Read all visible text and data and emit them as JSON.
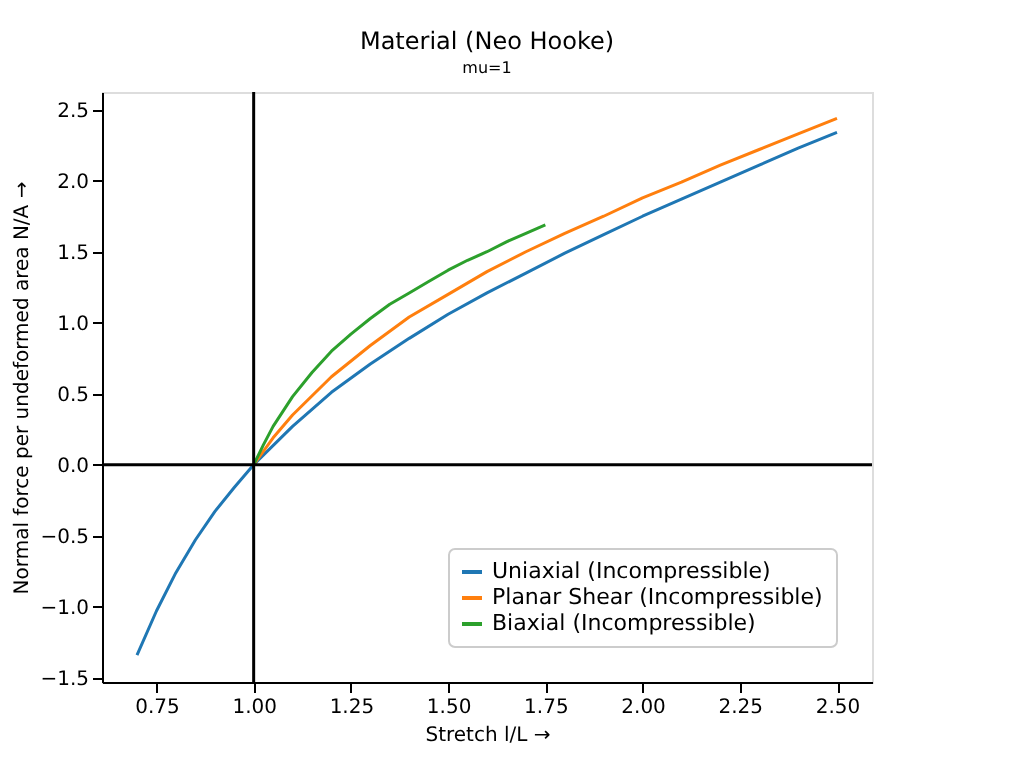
{
  "chart_data": {
    "type": "line",
    "title": "Material (Neo Hooke)",
    "subtitle": "mu=1",
    "xlabel": "Stretch l/L  →",
    "ylabel": "Normal force per undeformed area N/A  →",
    "xlim": [
      0.61,
      2.59
    ],
    "ylim": [
      -1.53,
      2.625
    ],
    "xticks": [
      {
        "value": 0.75,
        "label": "0.75"
      },
      {
        "value": 1,
        "label": "1.00"
      },
      {
        "value": 1.25,
        "label": "1.25"
      },
      {
        "value": 1.5,
        "label": "1.50"
      },
      {
        "value": 1.75,
        "label": "1.75"
      },
      {
        "value": 2,
        "label": "2.00"
      },
      {
        "value": 2.25,
        "label": "2.25"
      },
      {
        "value": 2.5,
        "label": "2.50"
      }
    ],
    "yticks": [
      {
        "value": -1.5,
        "label": "−1.5"
      },
      {
        "value": -1,
        "label": "−1.0"
      },
      {
        "value": -0.5,
        "label": "−0.5"
      },
      {
        "value": 0,
        "label": "0.0"
      },
      {
        "value": 0.5,
        "label": "0.5"
      },
      {
        "value": 1,
        "label": "1.0"
      },
      {
        "value": 1.5,
        "label": "1.5"
      },
      {
        "value": 2,
        "label": "2.0"
      },
      {
        "value": 2.5,
        "label": "2.5"
      }
    ],
    "grid": false,
    "legend": "bottom right",
    "line_style": "solid",
    "marker": "none",
    "ref_lines": [
      {
        "axis": "x",
        "value": 1,
        "color": "#000000"
      },
      {
        "axis": "y",
        "value": 0,
        "color": "#000000"
      }
    ],
    "series": [
      {
        "name": "Uniaxial (Incompressible)",
        "color": "#1f77b4",
        "x": [
          0.7,
          0.75,
          0.8,
          0.85,
          0.9,
          0.95,
          1.0,
          1.1,
          1.2,
          1.3,
          1.4,
          1.5,
          1.6,
          1.7,
          1.8,
          1.9,
          2.0,
          2.1,
          2.2,
          2.3,
          2.4,
          2.5
        ],
        "values": [
          -1.34,
          -1.03,
          -0.76,
          -0.53,
          -0.33,
          -0.16,
          0,
          0.27,
          0.51,
          0.71,
          0.89,
          1.06,
          1.21,
          1.35,
          1.49,
          1.62,
          1.75,
          1.87,
          1.99,
          2.11,
          2.23,
          2.34
        ]
      },
      {
        "name": "Planar Shear (Incompressible)",
        "color": "#ff7f0e",
        "x": [
          1.0,
          1.05,
          1.1,
          1.2,
          1.3,
          1.4,
          1.5,
          1.6,
          1.7,
          1.8,
          1.9,
          2.0,
          2.1,
          2.2,
          2.3,
          2.4,
          2.5
        ],
        "values": [
          0,
          0.19,
          0.35,
          0.62,
          0.84,
          1.04,
          1.2,
          1.36,
          1.5,
          1.63,
          1.75,
          1.88,
          1.99,
          2.11,
          2.22,
          2.33,
          2.44
        ]
      },
      {
        "name": "Biaxial (Incompressible)",
        "color": "#2ca02c",
        "x": [
          1.0,
          1.025,
          1.05,
          1.1,
          1.15,
          1.2,
          1.25,
          1.3,
          1.35,
          1.4,
          1.45,
          1.5,
          1.55,
          1.6,
          1.65,
          1.7,
          1.75
        ],
        "values": [
          0,
          0.14,
          0.27,
          0.48,
          0.65,
          0.8,
          0.92,
          1.03,
          1.13,
          1.21,
          1.29,
          1.37,
          1.44,
          1.5,
          1.57,
          1.63,
          1.69
        ]
      }
    ]
  }
}
